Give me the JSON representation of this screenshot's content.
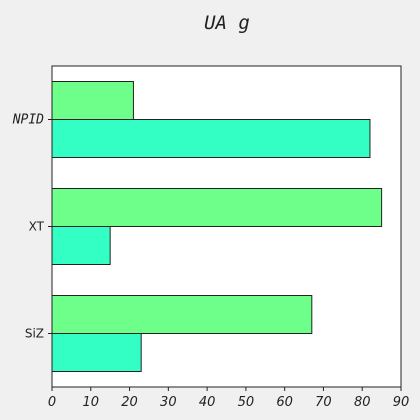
{
  "chart_data": {
    "type": "bar",
    "orientation": "horizontal",
    "title": "UA g",
    "xlabel": "",
    "ylabel": "",
    "categories": [
      "SiZ",
      "XT",
      "NPID"
    ],
    "series": [
      {
        "values": [
          23,
          15,
          82
        ],
        "color": "#33ffc4"
      },
      {
        "values": [
          67,
          85,
          21
        ],
        "color": "#6eff8b"
      }
    ],
    "xlim": [
      0,
      90
    ],
    "xticks": [
      0,
      10,
      20,
      30,
      40,
      50,
      60,
      70,
      80,
      90
    ],
    "grid": false,
    "legend": "none"
  }
}
